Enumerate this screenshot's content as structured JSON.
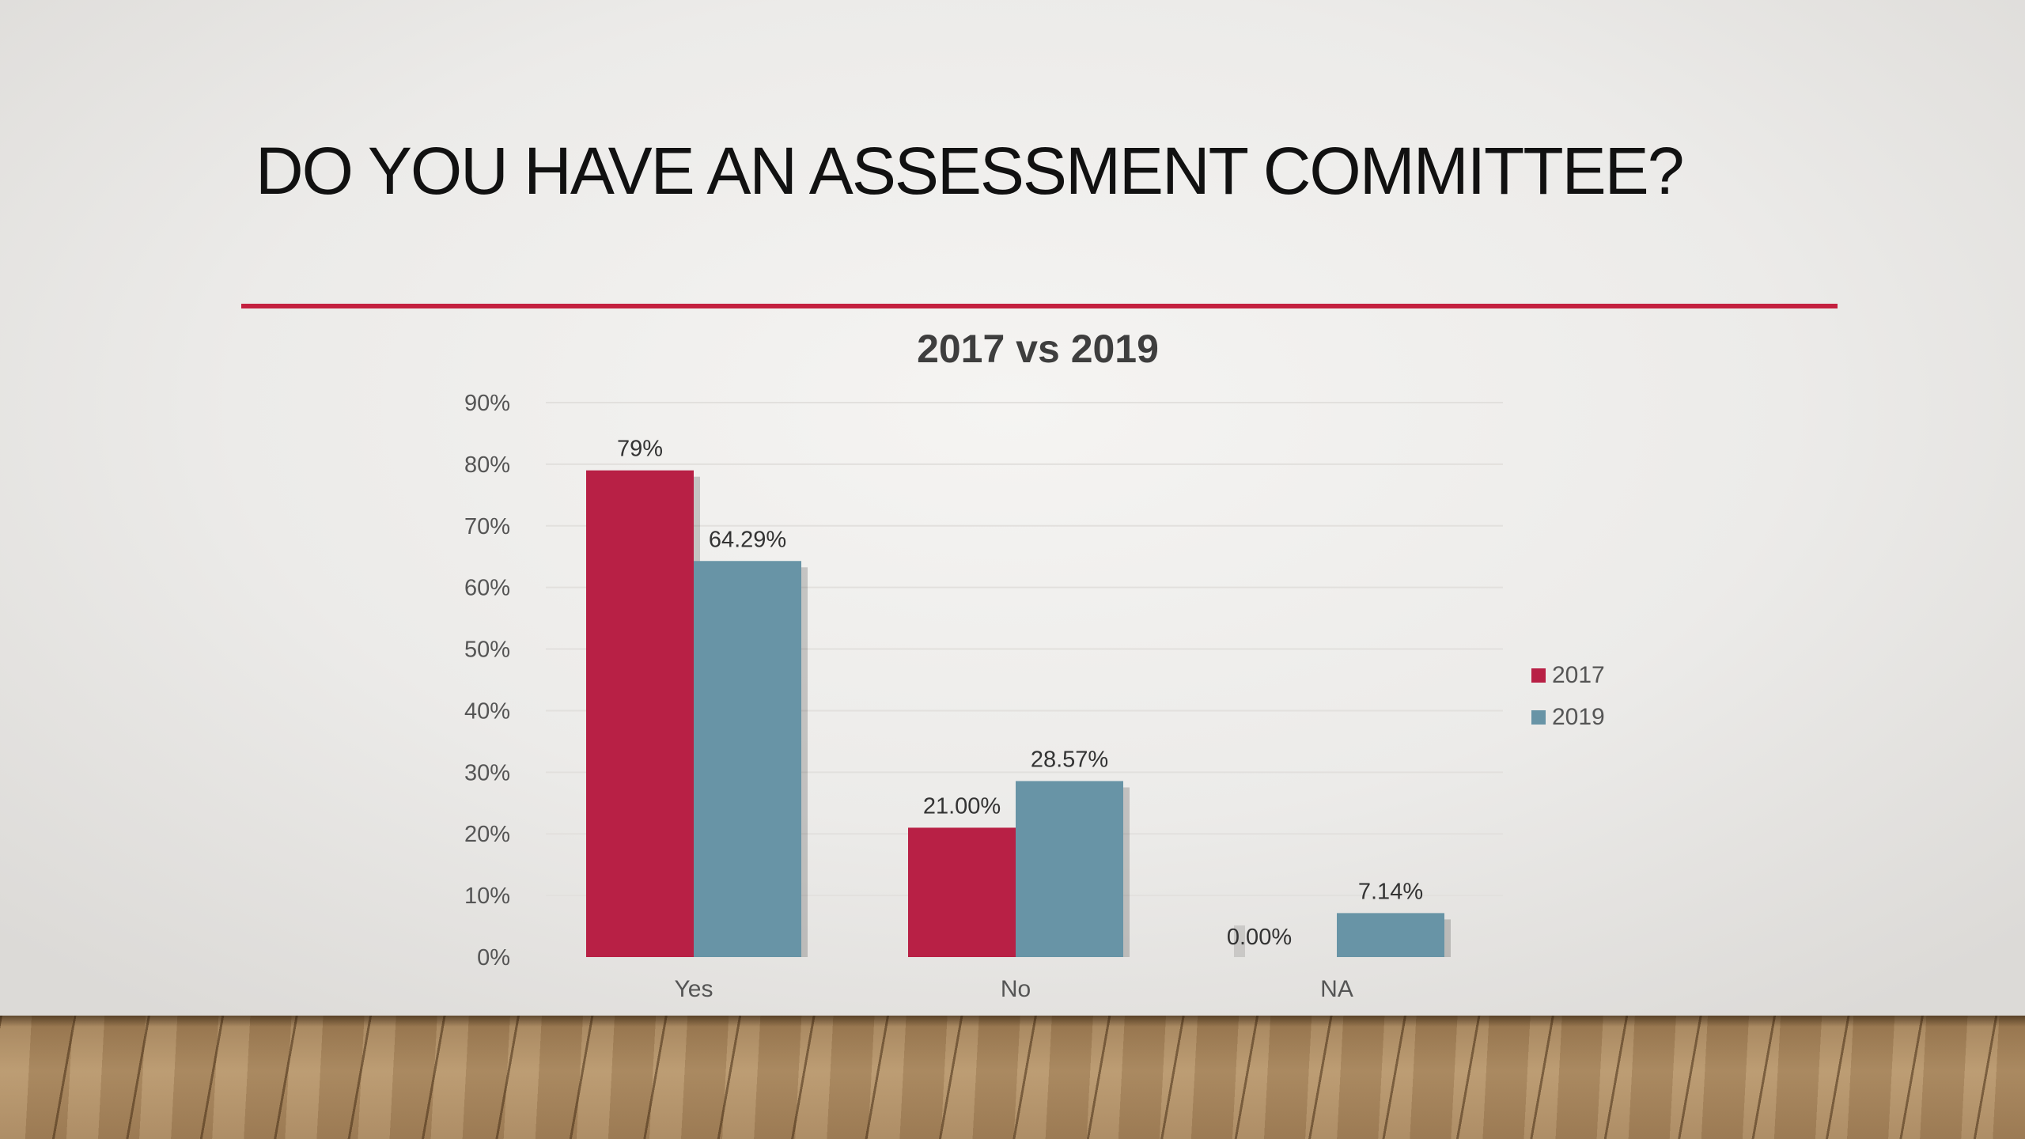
{
  "slide": {
    "title": "DO YOU HAVE AN ASSESSMENT  COMMITTEE?",
    "accent_color": "#c4203f"
  },
  "chart_data": {
    "type": "bar",
    "title": "2017 vs 2019",
    "categories": [
      "Yes",
      "No",
      "NA"
    ],
    "series": [
      {
        "name": "2017",
        "color": "#b82045",
        "values": [
          79,
          21.0,
          0.0
        ],
        "labels": [
          "79%",
          "21.00%",
          "0.00%"
        ]
      },
      {
        "name": "2019",
        "color": "#6894a6",
        "values": [
          64.29,
          28.57,
          7.14
        ],
        "labels": [
          "64.29%",
          "28.57%",
          "7.14%"
        ]
      }
    ],
    "ylim": [
      0,
      90
    ],
    "yticks": [
      "0%",
      "10%",
      "20%",
      "30%",
      "40%",
      "50%",
      "60%",
      "70%",
      "80%",
      "90%"
    ],
    "grid": true,
    "legend_position": "right"
  }
}
